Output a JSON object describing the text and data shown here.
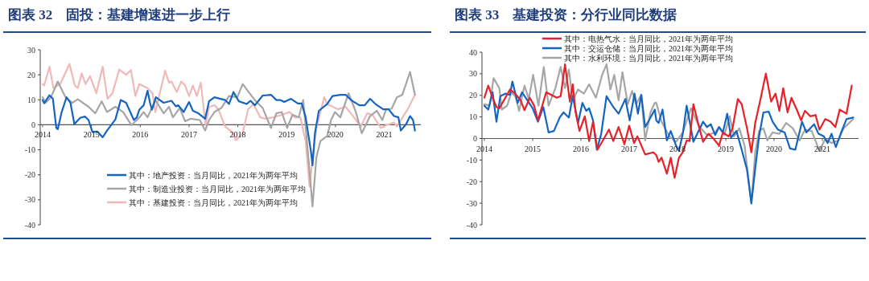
{
  "chart_data": [
    {
      "type": "line",
      "title": "图表 32　固投：基建增速进一步上行",
      "xlim": [
        2014,
        2021.75
      ],
      "xticks": [
        2014,
        2015,
        2016,
        2017,
        2018,
        2019,
        2020,
        2021
      ],
      "ylim": [
        -40,
        30
      ],
      "yticks": [
        -40,
        -30,
        -20,
        -10,
        0,
        10,
        20,
        30
      ],
      "legend": "bottom",
      "series": [
        {
          "name": "其中：地产投资：当月同比，2021年为两年平均",
          "color": "#1565c0",
          "x": [
            2014,
            2014.03,
            2014.14,
            2014.21,
            2014.28,
            2014.31,
            2014.39,
            2014.49,
            2014.57,
            2014.65,
            2014.77,
            2014.87,
            2014.94,
            2015.02,
            2015.12,
            2015.23,
            2015.32,
            2015.49,
            2015.6,
            2015.71,
            2015.87,
            2015.93,
            2015.98,
            2016.07,
            2016.15,
            2016.2,
            2016.24,
            2016.27,
            2016.32,
            2016.48,
            2016.64,
            2016.73,
            2016.78,
            2016.89,
            2017,
            2017.08,
            2017.19,
            2017.33,
            2017.41,
            2017.52,
            2017.74,
            2017.82,
            2017.91,
            2018.02,
            2018.18,
            2018.26,
            2018.35,
            2018.51,
            2018.68,
            2018.79,
            2018.87,
            2018.95,
            2019.09,
            2019.23,
            2019.31,
            2019.39,
            2019.5,
            2019.53,
            2019.58,
            2019.66,
            2019.83,
            2019.94,
            2020.1,
            2020.21,
            2020.32,
            2020.49,
            2020.6,
            2020.71,
            2020.82,
            2020.98,
            2021.09,
            2021.2,
            2021.29,
            2021.34,
            2021.45,
            2021.53,
            2021.59,
            2021.63
          ],
          "values": [
            9.9,
            8.6,
            11.8,
            10.4,
            -1.3,
            -1.8,
            5.1,
            11,
            8.8,
            0.3,
            2.8,
            3.3,
            1.9,
            -2.9,
            -2.7,
            -5,
            -2.3,
            2.1,
            9.9,
            8.8,
            1.9,
            3,
            6,
            7.8,
            13.6,
            8.8,
            6,
            7.8,
            11,
            8.8,
            9.6,
            7.4,
            7.8,
            5.1,
            9.1,
            5.6,
            4.6,
            2.4,
            9.4,
            11,
            9.9,
            8.3,
            13.1,
            9.4,
            8.3,
            9.6,
            7.8,
            11.7,
            12,
            9.9,
            9.9,
            9.1,
            10.4,
            8.5,
            8.5,
            3,
            -10.9,
            -16.2,
            -3.4,
            5.6,
            8.3,
            11.5,
            12,
            12,
            9.9,
            7.8,
            7.8,
            10.4,
            8.3,
            6.2,
            6.2,
            3.5,
            3,
            -2.3,
            0.3,
            3.5,
            1.9,
            -2.3
          ]
        },
        {
          "name": "其中：制造业投资：当月同比，2021年为两年平均",
          "color": "#a6a6a6",
          "x": [
            2014,
            2014.06,
            2014.17,
            2014.31,
            2014.47,
            2014.61,
            2014.72,
            2014.94,
            2015.08,
            2015.21,
            2015.32,
            2015.49,
            2015.65,
            2015.82,
            2015.93,
            2015.96,
            2016.07,
            2016.15,
            2016.31,
            2016.48,
            2016.59,
            2016.67,
            2016.81,
            2016.92,
            2017.03,
            2017.22,
            2017.33,
            2017.41,
            2017.52,
            2017.66,
            2017.82,
            2017.99,
            2018.1,
            2018.24,
            2018.37,
            2018.51,
            2018.68,
            2018.79,
            2018.9,
            2019.01,
            2019.12,
            2019.25,
            2019.34,
            2019.45,
            2019.53,
            2019.61,
            2019.69,
            2019.83,
            2019.91,
            2019.99,
            2020.1,
            2020.27,
            2020.41,
            2020.54,
            2020.71,
            2020.85,
            2020.96,
            2021.04,
            2021.15,
            2021.26,
            2021.37,
            2021.53,
            2021.63
          ],
          "values": [
            11,
            8.8,
            11,
            17.3,
            11,
            8.8,
            10.2,
            7.2,
            4.6,
            9.4,
            5.1,
            7.2,
            5.1,
            -0.2,
            1.9,
            2.4,
            5.1,
            3,
            9.9,
            4.6,
            7.2,
            3,
            6.7,
            1.4,
            2.4,
            1.9,
            -2.3,
            1.9,
            5.1,
            6.7,
            11.5,
            11,
            16.3,
            12.6,
            9.4,
            6.7,
            -1.3,
            4.6,
            5.1,
            -1.3,
            4,
            3,
            9.9,
            -14,
            -32.7,
            -13,
            -6.6,
            -4.5,
            1.9,
            5.1,
            3,
            12.6,
            5.6,
            -3.4,
            3.5,
            5.6,
            1.9,
            6.2,
            6.4,
            11,
            12,
            21.1,
            12
          ]
        },
        {
          "name": "其中：基建投资：当月同比，2021年为两年平均",
          "color": "#f0b8b8",
          "x": [
            2014,
            2014.03,
            2014.14,
            2014.22,
            2014.36,
            2014.55,
            2014.66,
            2014.72,
            2014.8,
            2014.88,
            2014.97,
            2015.1,
            2015.23,
            2015.33,
            2015.43,
            2015.57,
            2015.71,
            2015.81,
            2015.9,
            2015.98,
            2016.15,
            2016.25,
            2016.31,
            2016.51,
            2016.59,
            2016.64,
            2016.75,
            2016.84,
            2016.92,
            2017,
            2017.08,
            2017.16,
            2017.24,
            2017.34,
            2017.41,
            2017.52,
            2017.6,
            2017.74,
            2017.88,
            2017.96,
            2018.1,
            2018.21,
            2018.32,
            2018.46,
            2018.57,
            2018.73,
            2018.9,
            2019.06,
            2019.17,
            2019.28,
            2019.39,
            2019.47,
            2019.53,
            2019.61,
            2019.77,
            2019.83,
            2020.05,
            2020.21,
            2020.38,
            2020.52,
            2020.65,
            2020.76,
            2020.93,
            2021.04,
            2021.2,
            2021.26,
            2021.48,
            2021.63
          ],
          "values": [
            16.3,
            15.7,
            23.2,
            14.7,
            16.3,
            24.3,
            15.7,
            14.7,
            20.5,
            16.3,
            19.5,
            12.6,
            23.2,
            10.4,
            12.6,
            22.1,
            20,
            21.9,
            11.5,
            16.3,
            14.7,
            12.6,
            5.1,
            21.6,
            16.8,
            17.3,
            13.1,
            17.3,
            15.7,
            11.5,
            15.7,
            11.5,
            16.8,
            0,
            7.2,
            7.8,
            6.2,
            -0.7,
            -2.9,
            -6.1,
            -3.4,
            6.2,
            8.3,
            3,
            2.4,
            3,
            4,
            5.1,
            3,
            3,
            -6.6,
            -24.7,
            -14,
            -1.3,
            11,
            8.3,
            6.2,
            7.2,
            3,
            -0.7,
            4.6,
            4,
            -1.3,
            -0.2,
            0.9,
            -0.7,
            6.2,
            12
          ]
        }
      ]
    },
    {
      "type": "line",
      "title": "图表 33　基建投资：分行业同比数据",
      "xlim": [
        2014,
        2021.75
      ],
      "xticks": [
        2014,
        2015,
        2016,
        2017,
        2018,
        2019,
        2020,
        2021
      ],
      "ylim": [
        -40,
        40
      ],
      "yticks": [
        -40,
        -30,
        -20,
        -10,
        0,
        10,
        20,
        30,
        40
      ],
      "legend": "top",
      "series": [
        {
          "name": "其中：电热气水：当月同比，2021年为两年平均",
          "color": "#e8202a",
          "x": [
            2014,
            2014.08,
            2014.17,
            2014.25,
            2014.31,
            2014.42,
            2014.53,
            2014.64,
            2014.75,
            2014.83,
            2014.94,
            2015.03,
            2015.11,
            2015.19,
            2015.28,
            2015.39,
            2015.5,
            2015.58,
            2015.67,
            2015.77,
            2015.83,
            2015.89,
            2015.97,
            2016.08,
            2016.17,
            2016.25,
            2016.34,
            2016.44,
            2016.58,
            2016.67,
            2016.78,
            2016.9,
            2017,
            2017.1,
            2017.17,
            2017.33,
            2017.5,
            2017.56,
            2017.61,
            2017.67,
            2017.78,
            2017.86,
            2017.94,
            2018.03,
            2018.11,
            2018.19,
            2018.25,
            2018.33,
            2018.44,
            2018.53,
            2018.64,
            2018.75,
            2018.86,
            2018.94,
            2019.06,
            2019.14,
            2019.25,
            2019.33,
            2019.44,
            2019.53,
            2019.61,
            2019.72,
            2019.83,
            2019.94,
            2020.03,
            2020.11,
            2020.19,
            2020.28,
            2020.36,
            2020.47,
            2020.56,
            2020.64,
            2020.75,
            2020.86,
            2020.94,
            2021.06,
            2021.17,
            2021.27,
            2021.36,
            2021.5,
            2021.61
          ],
          "values": [
            18.9,
            24.5,
            18.9,
            14.6,
            14,
            18.3,
            22.7,
            20.8,
            17.7,
            13.1,
            18.9,
            15.2,
            8.4,
            14.6,
            21.4,
            20.2,
            18.9,
            19.6,
            34.4,
            17.1,
            25.1,
            12.1,
            3.5,
            10.3,
            -1.2,
            7.8,
            -5.2,
            -1.5,
            4.1,
            -1.2,
            5.3,
            -2.7,
            5.9,
            -2.1,
            1,
            -7.4,
            -6.4,
            -7.7,
            -10.8,
            -8.9,
            -16.3,
            -8.9,
            -18.2,
            -8.9,
            -6.4,
            -0.9,
            -1.2,
            15.9,
            5.9,
            -1.5,
            2.2,
            -0.2,
            -3.3,
            2.8,
            1,
            4.7,
            18.3,
            15.9,
            4.7,
            -6.4,
            7.2,
            18.3,
            30.1,
            17.1,
            20.8,
            12.8,
            23.3,
            12.1,
            18.9,
            13.4,
            8.4,
            12.8,
            10.3,
            10.9,
            4.1,
            9,
            7.8,
            5.3,
            13.4,
            11.5,
            24.5
          ]
        },
        {
          "name": "其中：交运仓储：当月同比，2021年为两年平均",
          "color": "#1565c0",
          "x": [
            2014,
            2014.08,
            2014.17,
            2014.25,
            2014.33,
            2014.44,
            2014.53,
            2014.58,
            2014.69,
            2014.78,
            2014.89,
            2015,
            2015.11,
            2015.22,
            2015.33,
            2015.44,
            2015.56,
            2015.64,
            2015.75,
            2015.83,
            2015.94,
            2016.03,
            2016.11,
            2016.17,
            2016.25,
            2016.33,
            2016.42,
            2016.53,
            2016.67,
            2016.78,
            2016.92,
            2017.01,
            2017.11,
            2017.18,
            2017.25,
            2017.33,
            2017.44,
            2017.53,
            2017.56,
            2017.61,
            2017.69,
            2017.78,
            2017.86,
            2017.97,
            2018.03,
            2018.11,
            2018.19,
            2018.33,
            2018.53,
            2018.61,
            2018.69,
            2018.78,
            2018.86,
            2018.94,
            2019.03,
            2019.11,
            2019.22,
            2019.33,
            2019.44,
            2019.53,
            2019.61,
            2019.69,
            2019.78,
            2019.89,
            2019.97,
            2020.08,
            2020.22,
            2020.33,
            2020.44,
            2020.58,
            2020.67,
            2020.75,
            2020.83,
            2020.92,
            2021.03,
            2021.11,
            2021.19,
            2021.28,
            2021.39,
            2021.5,
            2021.64
          ],
          "values": [
            15.2,
            13.4,
            21.4,
            7.8,
            19.6,
            20.8,
            20.2,
            26.4,
            16.5,
            21.4,
            17.7,
            14,
            7.8,
            14.6,
            2.8,
            3.5,
            9.7,
            12.1,
            9.7,
            19.6,
            7.2,
            16.5,
            12.8,
            14,
            8.4,
            -5.2,
            2.2,
            19.6,
            14.6,
            11.5,
            18.3,
            8.4,
            20.8,
            11.5,
            20.2,
            5.3,
            9.7,
            13.4,
            8.4,
            7.2,
            13.4,
            -0.9,
            3.5,
            -3.3,
            -5.8,
            2.2,
            15.2,
            -1.5,
            7.8,
            5.3,
            6.6,
            1.6,
            5.3,
            2.8,
            11.5,
            0.4,
            3.5,
            -5.2,
            -14.5,
            -30,
            -13.9,
            1,
            12.1,
            12.4,
            7.8,
            4.1,
            2.8,
            -4.6,
            -5.2,
            7.8,
            2.8,
            4.7,
            6.6,
            2.2,
            1,
            -2.1,
            2.2,
            -4,
            2.8,
            9,
            9.7
          ]
        },
        {
          "name": "其中：水利环境：当月同比，2021年为两年平均",
          "color": "#a6a6a6",
          "x": [
            2014,
            2014.11,
            2014.19,
            2014.31,
            2014.36,
            2014.47,
            2014.56,
            2014.64,
            2014.72,
            2014.83,
            2014.92,
            2015.01,
            2015.12,
            2015.23,
            2015.33,
            2015.47,
            2015.58,
            2015.67,
            2015.75,
            2015.83,
            2015.94,
            2016.06,
            2016.17,
            2016.31,
            2016.44,
            2016.53,
            2016.61,
            2016.69,
            2016.78,
            2016.86,
            2016.97,
            2017.06,
            2017.14,
            2017.25,
            2017.33,
            2017.44,
            2017.53,
            2017.56,
            2017.67,
            2017.83,
            2017.97,
            2018.11,
            2018.28,
            2018.44,
            2018.61,
            2018.78,
            2018.86,
            2018.97,
            2019.08,
            2019.17,
            2019.28,
            2019.39,
            2019.47,
            2019.53,
            2019.61,
            2019.69,
            2019.78,
            2019.86,
            2019.97,
            2020.11,
            2020.25,
            2020.39,
            2020.53,
            2020.64,
            2020.78,
            2020.94,
            2021.06,
            2021.19,
            2021.33,
            2021.44,
            2021.64
          ],
          "values": [
            15.9,
            15.2,
            28,
            23.3,
            13.4,
            15.2,
            21.4,
            19.6,
            12.8,
            24.5,
            18.3,
            29.5,
            15.2,
            33.2,
            15.2,
            23.3,
            33.2,
            23.3,
            32,
            17.7,
            22.7,
            20.8,
            25.1,
            18.9,
            29.5,
            34.4,
            22.7,
            29.5,
            17.7,
            30.7,
            15.9,
            22,
            15.9,
            20.2,
            -0.9,
            12.1,
            16.5,
            16.5,
            7.8,
            1,
            -1.5,
            2.8,
            14,
            5.9,
            1.6,
            2.8,
            5.3,
            1.6,
            10.3,
            1,
            4.7,
            -3.3,
            -18.8,
            -30.2,
            -6.4,
            3.5,
            4.7,
            -0.9,
            2.8,
            2.2,
            7.2,
            4.7,
            -0.9,
            4.1,
            3.5,
            -5.8,
            -0.2,
            -2.1,
            -0.9,
            4.7,
            9
          ]
        }
      ]
    }
  ]
}
